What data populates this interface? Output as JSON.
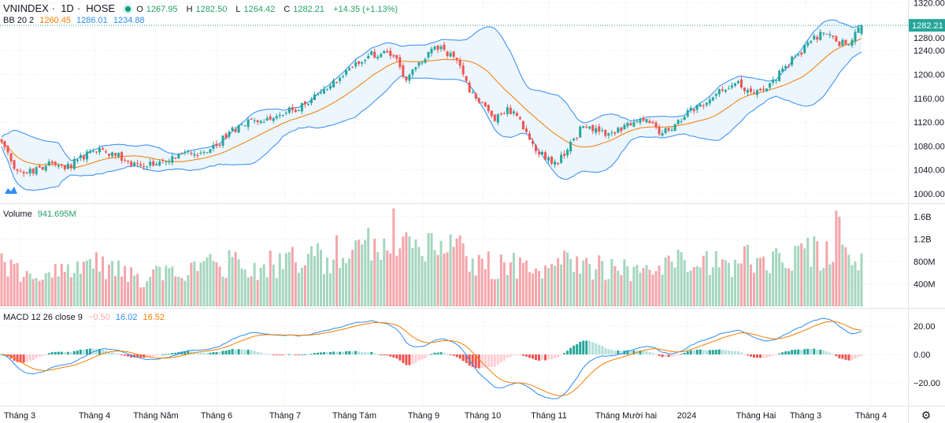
{
  "header": {
    "symbol": "VNINDEX",
    "interval": "1D",
    "exchange": "HOSE",
    "open_label": "O",
    "open": "1267.95",
    "high_label": "H",
    "high": "1282.50",
    "low_label": "L",
    "low": "1264.42",
    "close_label": "C",
    "close": "1282.21",
    "change": "+14.35 (+1.13%)"
  },
  "bb_legend": {
    "label": "BB 20 2",
    "basis": "1260.45",
    "upper": "1286.01",
    "lower": "1234.88"
  },
  "volume_legend": {
    "label": "Volume",
    "value": "941.695M"
  },
  "macd_legend": {
    "label": "MACD 12 26 close 9",
    "hist": "−0.50",
    "macd": "16.02",
    "signal": "16.52"
  },
  "last_price_label": "1282.21",
  "colors": {
    "up": "#26a69a",
    "down": "#ef5350",
    "vol_up": "#a5d6bf",
    "vol_down": "#f4a5ab",
    "bb_basis": "#f57c00",
    "bb_band": "#2f8cf2",
    "bb_fill": "#e8f2fd",
    "macd": "#2f8cf2",
    "signal": "#f57c00"
  },
  "chart_data": {
    "type": "candlestick",
    "sampling_note_visible": "",
    "price_axis_ticks": [
      "1320.00",
      "1280.00",
      "1240.00",
      "1200.00",
      "1160.00",
      "1120.00",
      "1080.00",
      "1040.00",
      "1000.00"
    ],
    "price_range": [
      1000,
      1320
    ],
    "volume_axis_ticks": [
      "1.6B",
      "1.2B",
      "800M",
      "400M"
    ],
    "macd_axis_ticks": [
      "20.00",
      "0.00",
      "−20.00"
    ],
    "x_tick_labels": [
      "Tháng 3",
      "Tháng 4",
      "Tháng Năm",
      "Tháng 6",
      "Tháng 7",
      "Tháng Tám",
      "Tháng 9",
      "Tháng 10",
      "Tháng 11",
      "Tháng Mười hai",
      "2024",
      "Tháng Hai",
      "Tháng 3",
      "Tháng 4"
    ],
    "close_every_4_sessions": [
      1087,
      1042,
      1035,
      1044,
      1051,
      1041,
      1057,
      1072,
      1074,
      1064,
      1054,
      1047,
      1047,
      1054,
      1066,
      1067,
      1070,
      1080,
      1104,
      1116,
      1123,
      1127,
      1132,
      1140,
      1150,
      1167,
      1181,
      1197,
      1220,
      1231,
      1234,
      1230,
      1190,
      1220,
      1243,
      1241,
      1224,
      1170,
      1153,
      1122,
      1145,
      1125,
      1084,
      1057,
      1050,
      1087,
      1113,
      1110,
      1101,
      1105,
      1120,
      1125,
      1100,
      1107,
      1129,
      1149,
      1158,
      1173,
      1185,
      1174,
      1173,
      1191,
      1214,
      1234,
      1256,
      1270,
      1255,
      1250,
      1282.21
    ],
    "volume_millions_every_4_sessions": [
      700,
      650,
      500,
      550,
      600,
      550,
      650,
      750,
      700,
      600,
      650,
      500,
      550,
      600,
      600,
      650,
      700,
      700,
      750,
      800,
      700,
      750,
      750,
      800,
      800,
      850,
      900,
      1000,
      950,
      1100,
      1000,
      1300,
      1000,
      900,
      1100,
      1150,
      1050,
      850,
      800,
      700,
      750,
      750,
      700,
      650,
      1000,
      800,
      800,
      700,
      650,
      700,
      650,
      600,
      700,
      750,
      800,
      750,
      800,
      700,
      750,
      850,
      850,
      900,
      950,
      1000,
      1050,
      900,
      1300,
      1000,
      941.695
    ],
    "last_bar": {
      "open": 1267.95,
      "high": 1282.5,
      "low": 1264.42,
      "close": 1282.21,
      "volume_millions": 941.695
    },
    "indicators": [
      "BB 20 2",
      "Volume",
      "MACD 12 26 close 9"
    ],
    "grid": true
  }
}
